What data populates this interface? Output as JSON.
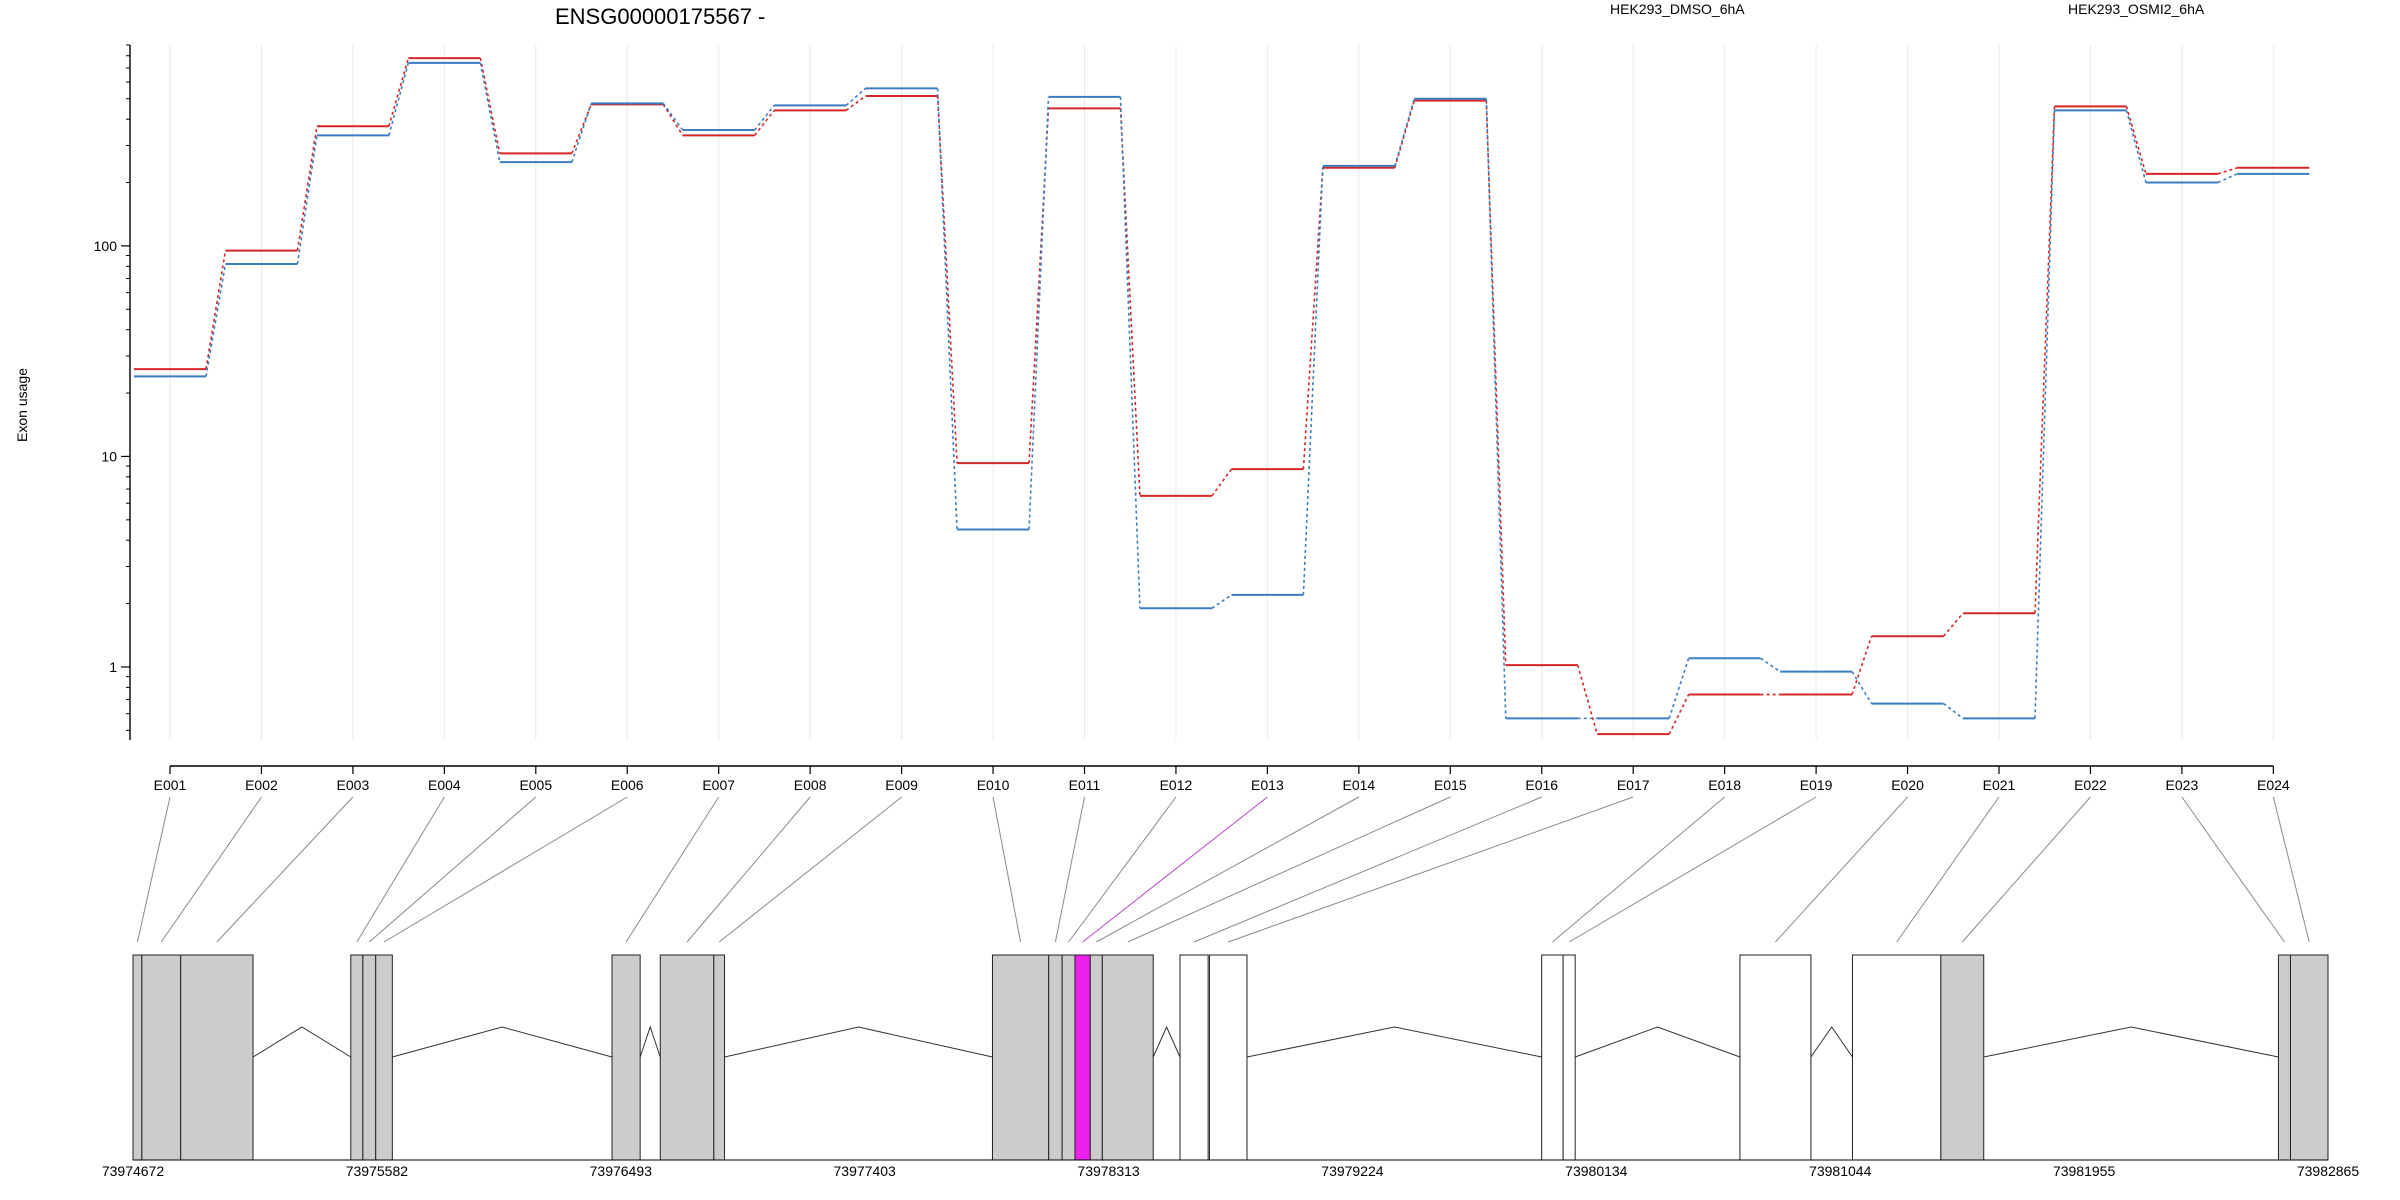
{
  "chart_data": {
    "type": "line",
    "title": "ENSG00000175567 -",
    "ylabel": "Exon usage",
    "xlabel": "",
    "y_scale": "log",
    "ylim": [
      0.45,
      900
    ],
    "yticks": [
      1,
      10,
      100
    ],
    "ytick_labels": [
      "1",
      "10",
      "100"
    ],
    "grid": "vertical faint",
    "legend_position": "top",
    "categories": [
      "E001",
      "E002",
      "E003",
      "E004",
      "E005",
      "E006",
      "E007",
      "E008",
      "E009",
      "E010",
      "E011",
      "E012",
      "E013",
      "E014",
      "E015",
      "E016",
      "E017",
      "E018",
      "E019",
      "E020",
      "E021",
      "E022",
      "E023",
      "E024"
    ],
    "highlight_exon": "E013",
    "series": [
      {
        "name": "HEK293_DMSO_6hA",
        "color": "#d62728",
        "values": [
          26,
          95,
          370,
          780,
          275,
          470,
          335,
          440,
          515,
          9.3,
          450,
          6.5,
          8.7,
          235,
          490,
          1.02,
          0.48,
          0.74,
          0.74,
          1.4,
          1.8,
          460,
          220,
          235
        ]
      },
      {
        "name": "HEK293_OSMI2_6hA",
        "color": "#3a7dc0",
        "values": [
          24,
          82,
          335,
          740,
          250,
          475,
          355,
          465,
          560,
          4.5,
          510,
          1.9,
          2.2,
          240,
          500,
          0.57,
          0.57,
          1.1,
          0.95,
          0.67,
          0.57,
          440,
          200,
          220
        ]
      }
    ]
  },
  "gene_model": {
    "coord_range": [
      73974672,
      73982865
    ],
    "coord_labels": [
      "73974672",
      "73975582",
      "73976493",
      "73977403",
      "73978313",
      "73979224",
      "73980134",
      "73981044",
      "73981955",
      "73982865"
    ],
    "exon_bins": [
      {
        "id": "E001",
        "start": 73974672,
        "end": 73974705,
        "coding": true
      },
      {
        "id": "E002",
        "start": 73974705,
        "end": 73974850,
        "coding": true
      },
      {
        "id": "E003",
        "start": 73974850,
        "end": 73975120,
        "coding": true
      },
      {
        "id": "E004",
        "start": 73975485,
        "end": 73975530,
        "coding": true
      },
      {
        "id": "E005",
        "start": 73975530,
        "end": 73975578,
        "coding": true
      },
      {
        "id": "E006",
        "start": 73975578,
        "end": 73975640,
        "coding": true
      },
      {
        "id": "E007",
        "start": 73976460,
        "end": 73976565,
        "coding": true
      },
      {
        "id": "E008",
        "start": 73976640,
        "end": 73976840,
        "coding": true
      },
      {
        "id": "E009",
        "start": 73976840,
        "end": 73976880,
        "coding": true
      },
      {
        "id": "E010",
        "start": 73977880,
        "end": 73978090,
        "coding": true
      },
      {
        "id": "E011",
        "start": 73978090,
        "end": 73978140,
        "coding": true
      },
      {
        "id": "E012",
        "start": 73978140,
        "end": 73978188,
        "coding": true
      },
      {
        "id": "E013",
        "start": 73978188,
        "end": 73978245,
        "coding": true
      },
      {
        "id": "E014",
        "start": 73978245,
        "end": 73978290,
        "coding": true
      },
      {
        "id": "E015",
        "start": 73978290,
        "end": 73978480,
        "coding": true
      },
      {
        "id": "E016",
        "start": 73978580,
        "end": 73978685,
        "coding": false
      },
      {
        "id": "E017",
        "start": 73978690,
        "end": 73978830,
        "coding": false
      },
      {
        "id": "E018",
        "start": 73979930,
        "end": 73980010,
        "coding": false
      },
      {
        "id": "E019",
        "start": 73980010,
        "end": 73980055,
        "coding": false
      },
      {
        "id": "E020",
        "start": 73980670,
        "end": 73980935,
        "coding": false
      },
      {
        "id": "E021",
        "start": 73981090,
        "end": 73981420,
        "coding": false
      },
      {
        "id": "E022",
        "start": 73981420,
        "end": 73981580,
        "coding": true
      },
      {
        "id": "E023",
        "start": 73982680,
        "end": 73982725,
        "coding": true
      },
      {
        "id": "E024",
        "start": 73982725,
        "end": 73982865,
        "coding": true
      }
    ]
  }
}
